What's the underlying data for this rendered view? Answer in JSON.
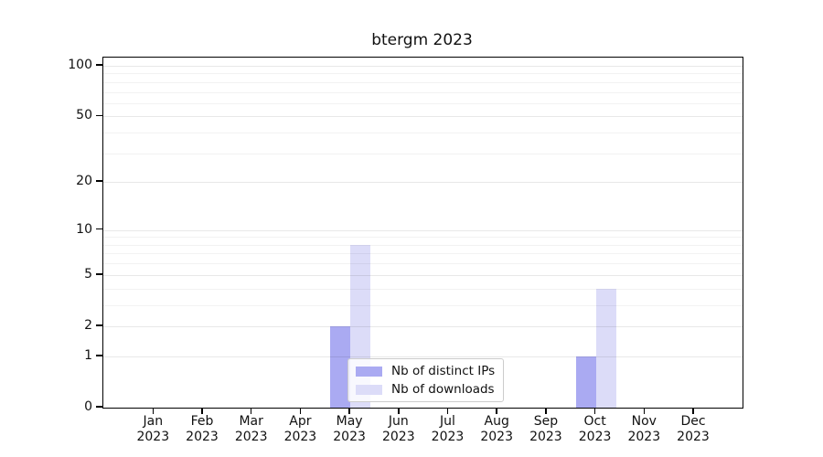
{
  "chart_data": {
    "type": "bar",
    "title": "btergm 2023",
    "categories": [
      {
        "month": "Jan",
        "year": "2023"
      },
      {
        "month": "Feb",
        "year": "2023"
      },
      {
        "month": "Mar",
        "year": "2023"
      },
      {
        "month": "Apr",
        "year": "2023"
      },
      {
        "month": "May",
        "year": "2023"
      },
      {
        "month": "Jun",
        "year": "2023"
      },
      {
        "month": "Jul",
        "year": "2023"
      },
      {
        "month": "Aug",
        "year": "2023"
      },
      {
        "month": "Sep",
        "year": "2023"
      },
      {
        "month": "Oct",
        "year": "2023"
      },
      {
        "month": "Nov",
        "year": "2023"
      },
      {
        "month": "Dec",
        "year": "2023"
      }
    ],
    "series": [
      {
        "name": "Nb of distinct IPs",
        "color": "#aaaaf2",
        "values": [
          0,
          0,
          0,
          0,
          2,
          0,
          0,
          0,
          0,
          1,
          0,
          0
        ]
      },
      {
        "name": "Nb of downloads",
        "color": "#dcdcf8",
        "values": [
          0,
          0,
          0,
          0,
          8,
          0,
          0,
          0,
          0,
          4,
          0,
          0
        ]
      }
    ],
    "y_scale": "log1p",
    "y_ticks": [
      0,
      1,
      2,
      5,
      10,
      20,
      50,
      100
    ],
    "y_minor_gridlines": [
      3,
      4,
      6,
      7,
      8,
      9,
      30,
      40,
      60,
      70,
      80,
      90
    ],
    "ylim": [
      0,
      112
    ],
    "grid": true,
    "legend_position": "inside-bottom-center"
  },
  "colors": {
    "grid_major": "rgba(0,0,0,0.09)",
    "grid_minor": "rgba(0,0,0,0.05)",
    "axis": "#000000",
    "background": "#ffffff"
  }
}
